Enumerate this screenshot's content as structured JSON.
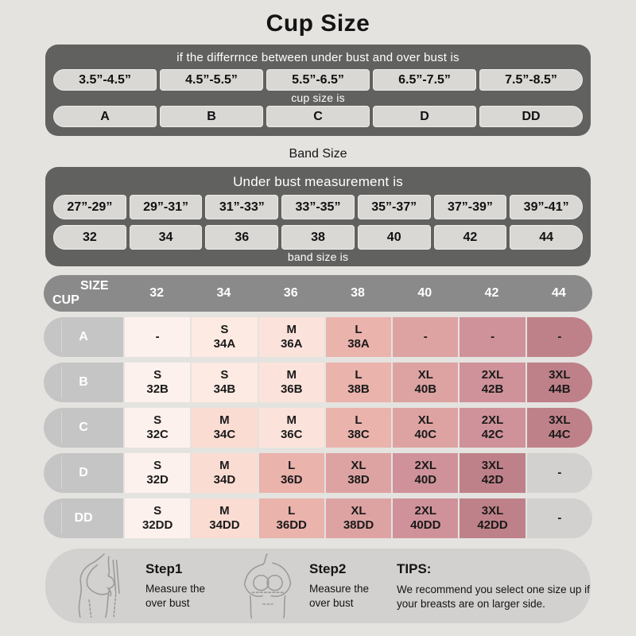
{
  "title": "Cup Size",
  "cup_section": {
    "header": "if the differrnce between under bust and over bust is",
    "diff_ranges": [
      "3.5”-4.5”",
      "4.5”-5.5”",
      "5.5”-6.5”",
      "6.5”-7.5”",
      "7.5”-8.5”"
    ],
    "subheader": "cup size is",
    "cup_sizes": [
      "A",
      "B",
      "C",
      "D",
      "DD"
    ]
  },
  "band_section": {
    "title": "Band Size",
    "header": "Under bust measurement is",
    "measure_ranges": [
      "27”-29”",
      "29”-31”",
      "31”-33”",
      "33”-35”",
      "35”-37”",
      "37”-39”",
      "39”-41”"
    ],
    "band_sizes": [
      "32",
      "34",
      "36",
      "38",
      "40",
      "42",
      "44"
    ],
    "footer": "band size is"
  },
  "size_table": {
    "corner_top": "SIZE",
    "corner_bottom": "CUP",
    "columns": [
      "32",
      "34",
      "36",
      "38",
      "40",
      "42",
      "44"
    ],
    "rows": [
      {
        "cup": "A",
        "cells": [
          {
            "size": "-",
            "code": "",
            "bg": "#fdf1ed"
          },
          {
            "size": "S",
            "code": "34A",
            "bg": "#fceae3"
          },
          {
            "size": "M",
            "code": "36A",
            "bg": "#fbe3db"
          },
          {
            "size": "L",
            "code": "38A",
            "bg": "#eab3ac"
          },
          {
            "size": "-",
            "code": "",
            "bg": "#dda3a2"
          },
          {
            "size": "-",
            "code": "",
            "bg": "#cf929a"
          },
          {
            "size": "-",
            "code": "",
            "bg": "#bf8189"
          }
        ]
      },
      {
        "cup": "B",
        "cells": [
          {
            "size": "S",
            "code": "32B",
            "bg": "#fdf1ed"
          },
          {
            "size": "S",
            "code": "34B",
            "bg": "#fceae3"
          },
          {
            "size": "M",
            "code": "36B",
            "bg": "#fbe3db"
          },
          {
            "size": "L",
            "code": "38B",
            "bg": "#eab3ac"
          },
          {
            "size": "XL",
            "code": "40B",
            "bg": "#dda3a2"
          },
          {
            "size": "2XL",
            "code": "42B",
            "bg": "#cf929a"
          },
          {
            "size": "3XL",
            "code": "44B",
            "bg": "#bf8189"
          }
        ]
      },
      {
        "cup": "C",
        "cells": [
          {
            "size": "S",
            "code": "32C",
            "bg": "#fdf1ed"
          },
          {
            "size": "M",
            "code": "34C",
            "bg": "#fadcd3"
          },
          {
            "size": "M",
            "code": "36C",
            "bg": "#fbe3db"
          },
          {
            "size": "L",
            "code": "38C",
            "bg": "#eab3ac"
          },
          {
            "size": "XL",
            "code": "40C",
            "bg": "#dda3a2"
          },
          {
            "size": "2XL",
            "code": "42C",
            "bg": "#cf929a"
          },
          {
            "size": "3XL",
            "code": "44C",
            "bg": "#bf8189"
          }
        ]
      },
      {
        "cup": "D",
        "cells": [
          {
            "size": "S",
            "code": "32D",
            "bg": "#fdf1ed"
          },
          {
            "size": "M",
            "code": "34D",
            "bg": "#fadcd3"
          },
          {
            "size": "L",
            "code": "36D",
            "bg": "#eab3ac"
          },
          {
            "size": "XL",
            "code": "38D",
            "bg": "#dda3a2"
          },
          {
            "size": "2XL",
            "code": "40D",
            "bg": "#cf929a"
          },
          {
            "size": "3XL",
            "code": "42D",
            "bg": "#bf8189"
          },
          {
            "size": "-",
            "code": "",
            "bg": "#d2d1d0"
          }
        ]
      },
      {
        "cup": "DD",
        "cells": [
          {
            "size": "S",
            "code": "32DD",
            "bg": "#fdf1ed"
          },
          {
            "size": "M",
            "code": "34DD",
            "bg": "#fadcd3"
          },
          {
            "size": "L",
            "code": "36DD",
            "bg": "#eab3ac"
          },
          {
            "size": "XL",
            "code": "38DD",
            "bg": "#dda3a2"
          },
          {
            "size": "2XL",
            "code": "40DD",
            "bg": "#cf929a"
          },
          {
            "size": "3XL",
            "code": "42DD",
            "bg": "#bf8189"
          },
          {
            "size": "-",
            "code": "",
            "bg": "#d2d1d0"
          }
        ]
      }
    ]
  },
  "footer": {
    "step1_title": "Step1",
    "step1_desc": "Measure the over bust",
    "step2_title": "Step2",
    "step2_desc": "Measure the over bust",
    "tips_title": "TIPS:",
    "tips_desc": "We recommend you select one size up if your breasts are on larger side."
  },
  "colors": {
    "page_bg": "#e4e3e0",
    "dark_bar": "#61615f",
    "pill_bg": "#d9d8d5",
    "table_header": "#8b8a8a",
    "row_label": "#c6c5c5",
    "footer_bg": "#d2d1cf",
    "pink_lightest": "#fdf1ed",
    "pink_darkest": "#bf8189",
    "gray_cell": "#d2d1d0"
  }
}
